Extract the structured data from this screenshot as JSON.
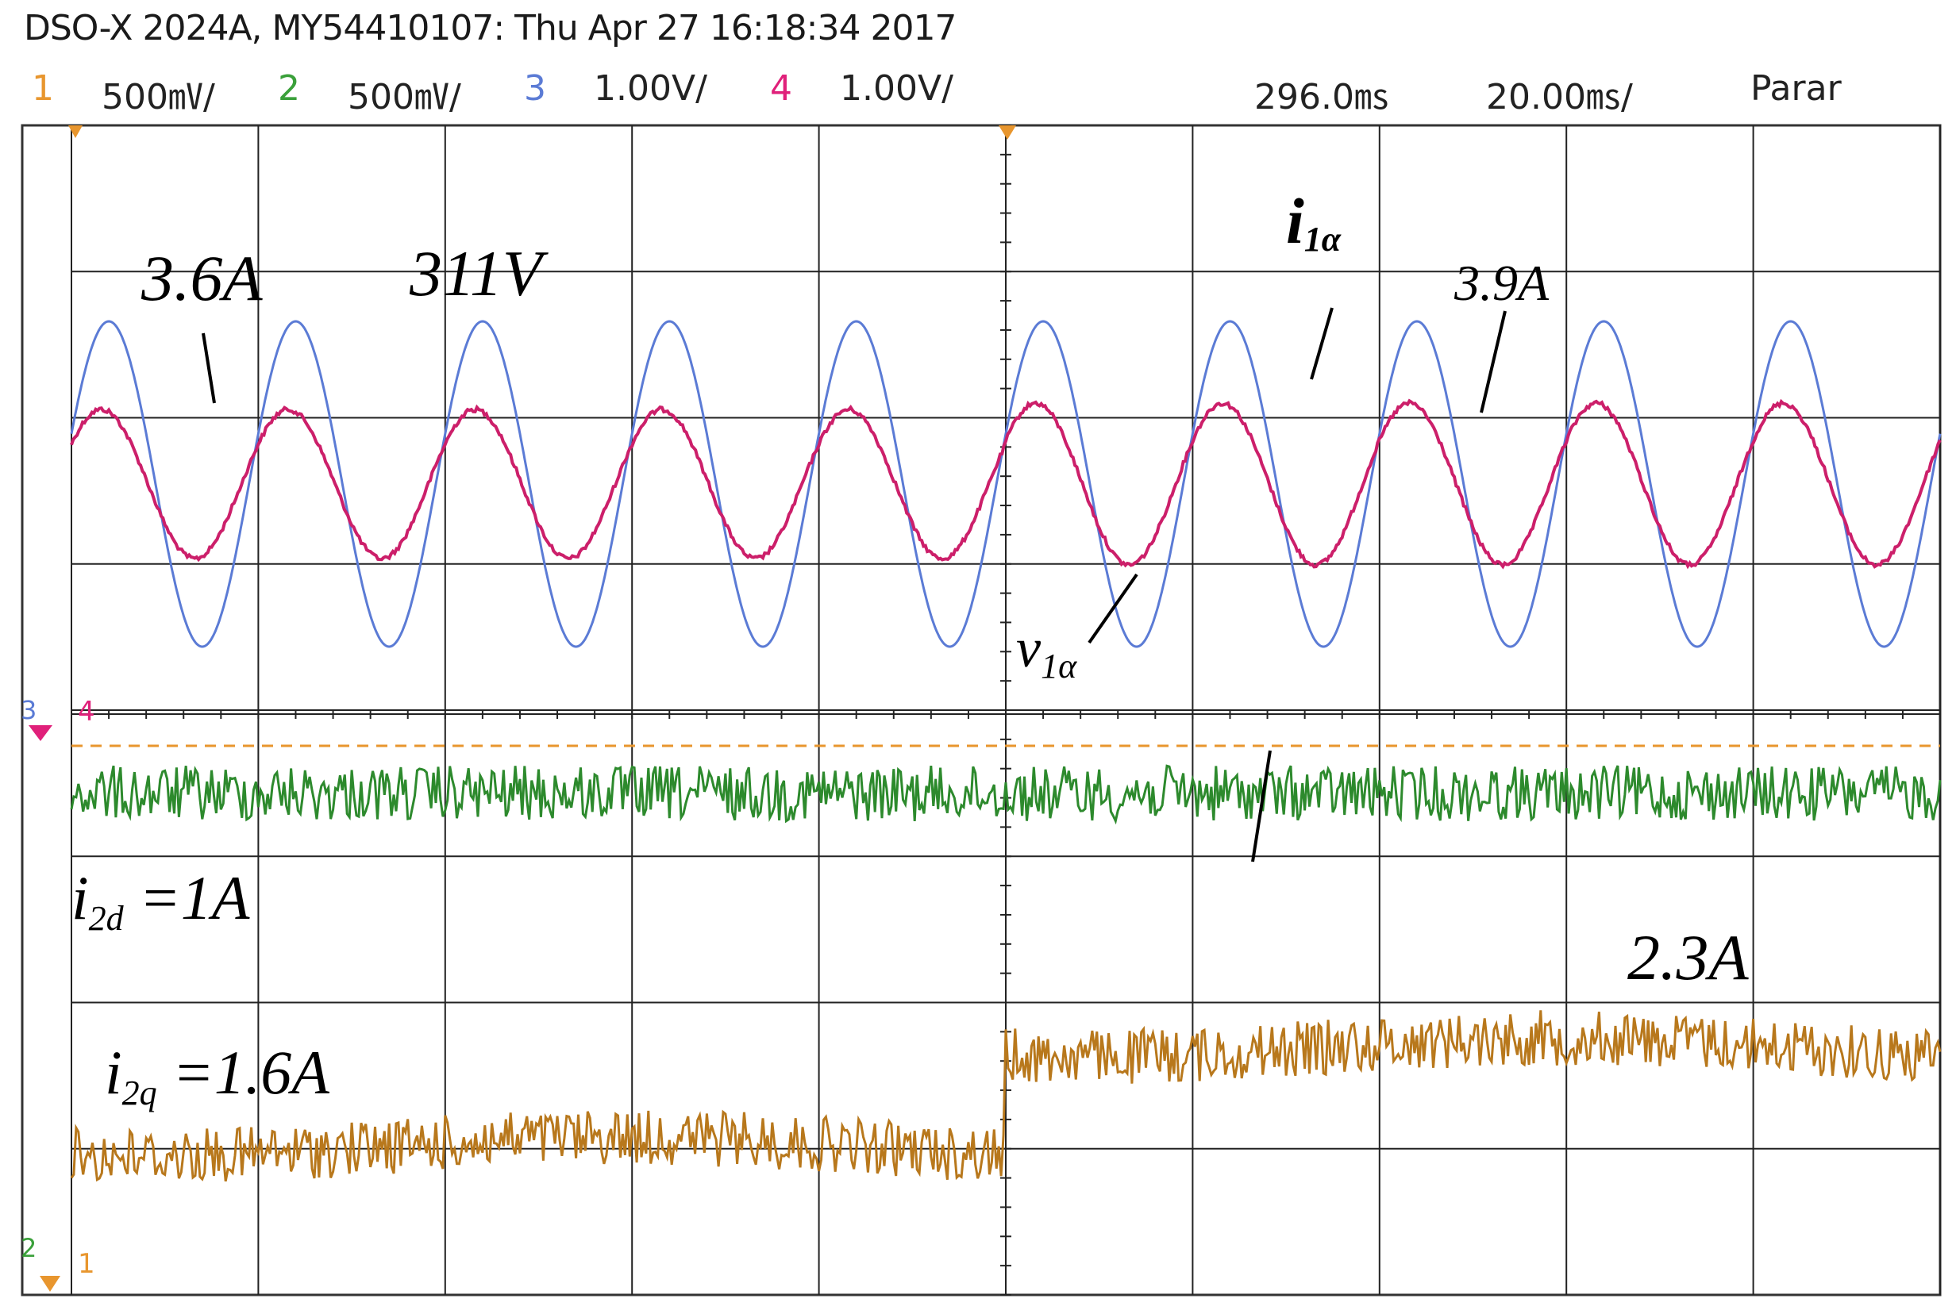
{
  "header": {
    "title": "DSO-X 2024A, MY54410107: Thu Apr 27 16:18:34 2017",
    "channels": [
      {
        "num": "1",
        "scale": "500㎷/",
        "color": "#e8962e"
      },
      {
        "num": "2",
        "scale": "500㎷/",
        "color": "#3aa03a"
      },
      {
        "num": "3",
        "scale": "1.00V/",
        "color": "#5b7bd5"
      },
      {
        "num": "4",
        "scale": "1.00V/",
        "color": "#e0207a"
      }
    ],
    "delay": "296.0㎳",
    "timebase": "20.00㎳/",
    "run_state": "Parar"
  },
  "annotations": {
    "i1_before": "3.6A",
    "v1_amp": "311V",
    "i1_label_main": "i",
    "i1_label_sub": "1α",
    "i1_after": "3.9A",
    "v1_label_main": "v",
    "v1_label_sub": "1α",
    "i2d_main": "i",
    "i2d_sub": "2d",
    "i2d_value": " =1A",
    "i2q_main": "i",
    "i2q_sub": "2q",
    "i2q_value": " =1.6A",
    "i2q_after": "2.3A"
  },
  "markers": {
    "ch34_ground": "4",
    "ch34_tag": "3",
    "ch12_ground": "1",
    "ch12_tag": "2"
  },
  "chart_data": {
    "type": "line",
    "time_ms": [
      0,
      200
    ],
    "step_time_ms": 100,
    "series": [
      {
        "name": "v1α",
        "channel": "3",
        "amplitude_V": 311,
        "frequency_hz": 50,
        "color": "#5b7bd5"
      },
      {
        "name": "i1α",
        "channel": "4",
        "amplitude_before_A": 3.6,
        "amplitude_after_A": 3.9,
        "frequency_hz": 50,
        "color": "#cc1f6a"
      },
      {
        "name": "i2d",
        "channel": "2",
        "value_before_A": 1.0,
        "value_after_A": 1.0,
        "color": "#2d8a2d"
      },
      {
        "name": "i2q",
        "channel": "1",
        "value_before_A": 1.6,
        "value_after_A": 2.3,
        "color": "#b8781c"
      }
    ]
  }
}
